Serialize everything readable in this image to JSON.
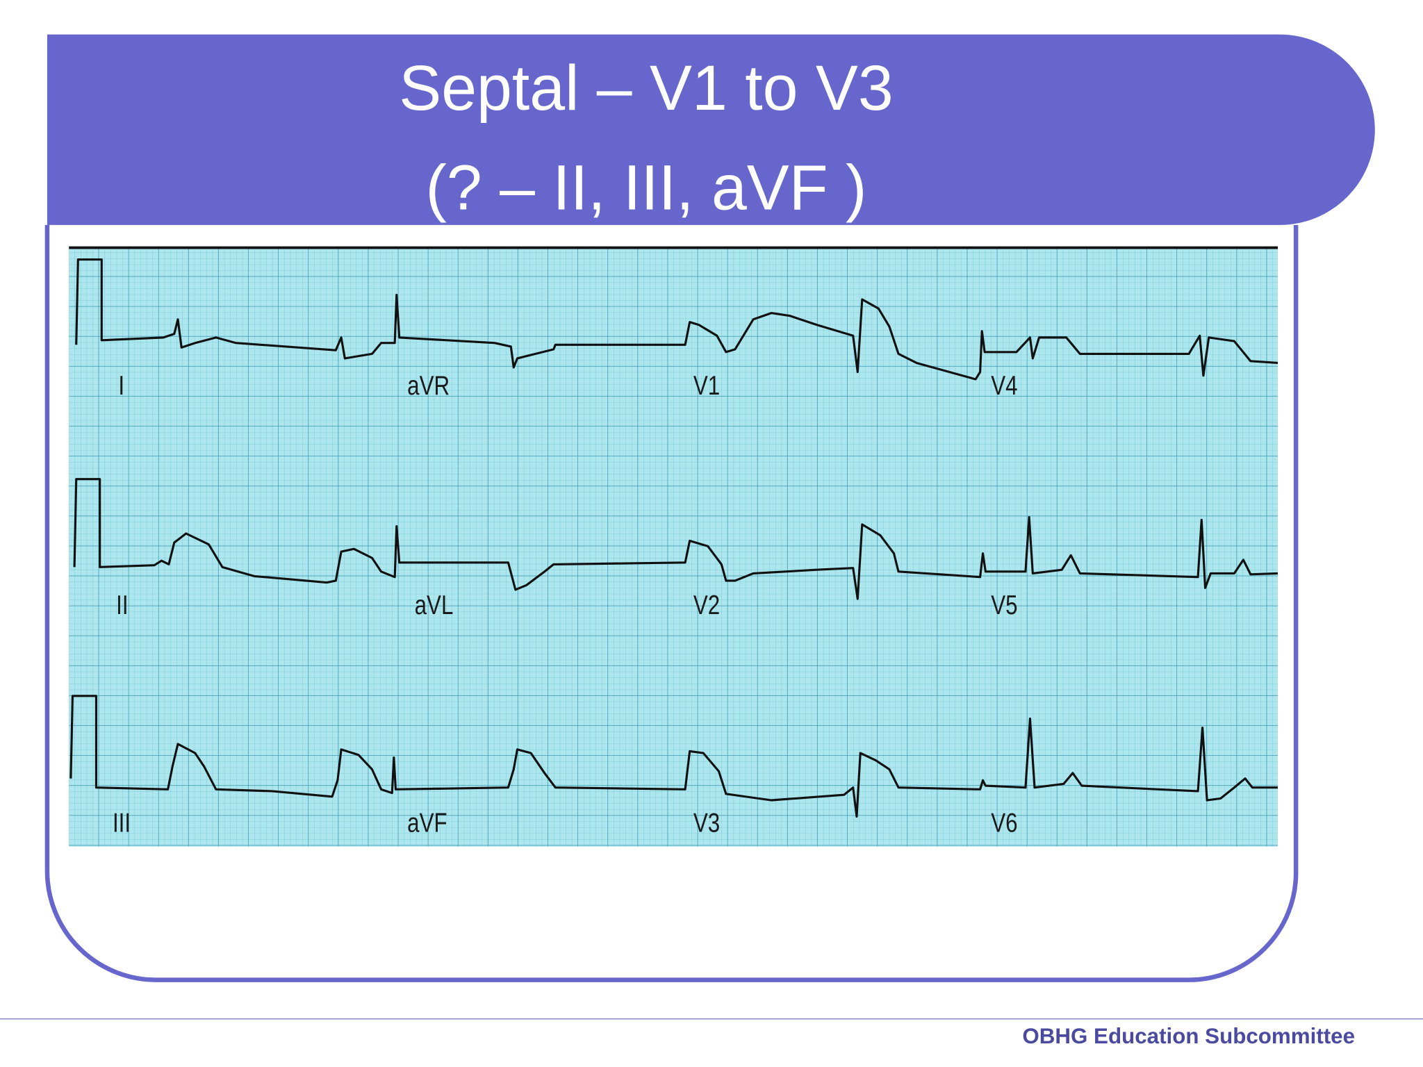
{
  "title": {
    "line1": "Septal – V1 to V3",
    "line2": "(? – II, III, aVF )"
  },
  "ecg": {
    "leads": [
      [
        "I",
        "aVR",
        "V1",
        "V4"
      ],
      [
        "II",
        "aVL",
        "V2",
        "V5"
      ],
      [
        "III",
        "aVF",
        "V3",
        "V6"
      ]
    ]
  },
  "footer": "OBHG Education Subcommittee"
}
